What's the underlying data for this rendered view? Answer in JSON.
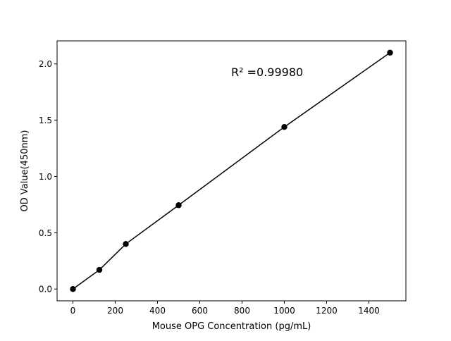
{
  "chart_data": {
    "type": "scatter",
    "title": "",
    "xlabel": "Mouse OPG Concentration (pg/mL)",
    "ylabel": "OD Value(450nm)",
    "x": [
      0,
      125,
      250,
      500,
      1000,
      1500
    ],
    "y": [
      0.0,
      0.17,
      0.4,
      0.745,
      1.44,
      2.1
    ],
    "fit_line": {
      "x": [
        0,
        125,
        250,
        500,
        1000,
        1500
      ],
      "y": [
        0.0,
        0.17,
        0.4,
        0.745,
        1.44,
        2.1
      ]
    },
    "xlim": [
      -75,
      1575
    ],
    "ylim": [
      -0.105,
      2.205
    ],
    "xticks": [
      0,
      200,
      400,
      600,
      800,
      1000,
      1200,
      1400
    ],
    "yticks": [
      0.0,
      0.5,
      1.0,
      1.5,
      2.0
    ],
    "ytick_labels": [
      "0.0",
      "0.5",
      "1.0",
      "1.5",
      "2.0"
    ],
    "annotation": "R² =0.99980",
    "grid": false,
    "colors": {
      "points": "#000000",
      "line": "#000000"
    }
  }
}
